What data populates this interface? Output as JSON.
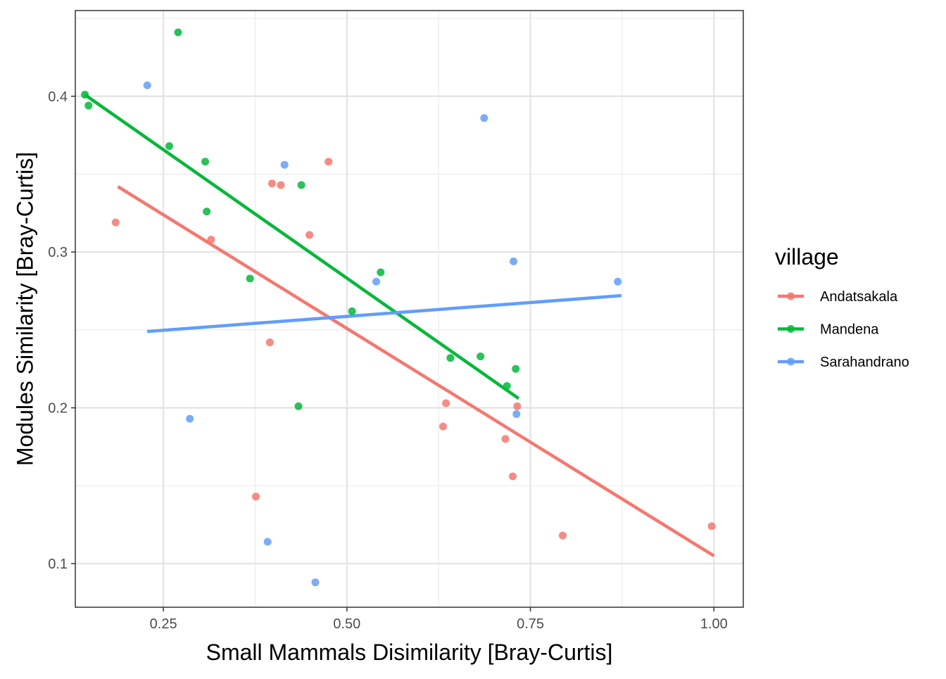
{
  "chart_data": {
    "type": "scatter",
    "title": "",
    "xlabel": "Small Mammals Disimilarity [Bray-Curtis]",
    "ylabel": "Modules Similarity [Bray-Curtis]",
    "xlim": [
      0.13,
      1.04
    ],
    "ylim": [
      0.072,
      0.455
    ],
    "xticks": [
      0.25,
      0.5,
      0.75,
      1.0
    ],
    "xtick_labels": [
      "0.25",
      "0.50",
      "0.75",
      "1.00"
    ],
    "yticks": [
      0.1,
      0.2,
      0.3,
      0.4
    ],
    "ytick_labels": [
      "0.1",
      "0.2",
      "0.3",
      "0.4"
    ],
    "grid": true,
    "legend": {
      "title": "village",
      "placement": "right"
    },
    "series": [
      {
        "name": "Andatsakala",
        "color": "#F8766D",
        "points": [
          [
            0.185,
            0.319
          ],
          [
            0.315,
            0.308
          ],
          [
            0.398,
            0.344
          ],
          [
            0.41,
            0.343
          ],
          [
            0.475,
            0.358
          ],
          [
            0.449,
            0.311
          ],
          [
            0.395,
            0.242
          ],
          [
            0.376,
            0.143
          ],
          [
            0.635,
            0.203
          ],
          [
            0.631,
            0.188
          ],
          [
            0.716,
            0.18
          ],
          [
            0.726,
            0.156
          ],
          [
            0.732,
            0.201
          ],
          [
            0.794,
            0.118
          ],
          [
            0.997,
            0.124
          ]
        ],
        "fit": [
          [
            0.188,
            0.342
          ],
          [
            1.0,
            0.105
          ]
        ]
      },
      {
        "name": "Mandena",
        "color": "#00BA38",
        "points": [
          [
            0.143,
            0.401
          ],
          [
            0.148,
            0.394
          ],
          [
            0.27,
            0.441
          ],
          [
            0.258,
            0.368
          ],
          [
            0.307,
            0.358
          ],
          [
            0.309,
            0.326
          ],
          [
            0.438,
            0.343
          ],
          [
            0.368,
            0.283
          ],
          [
            0.546,
            0.287
          ],
          [
            0.507,
            0.262
          ],
          [
            0.434,
            0.201
          ],
          [
            0.641,
            0.232
          ],
          [
            0.682,
            0.233
          ],
          [
            0.73,
            0.225
          ],
          [
            0.718,
            0.214
          ]
        ],
        "fit": [
          [
            0.143,
            0.401
          ],
          [
            0.734,
            0.206
          ]
        ]
      },
      {
        "name": "Sarahandrano",
        "color": "#619CFF",
        "points": [
          [
            0.228,
            0.407
          ],
          [
            0.415,
            0.356
          ],
          [
            0.687,
            0.386
          ],
          [
            0.727,
            0.294
          ],
          [
            0.54,
            0.281
          ],
          [
            0.869,
            0.281
          ],
          [
            0.286,
            0.193
          ],
          [
            0.731,
            0.196
          ],
          [
            0.392,
            0.114
          ],
          [
            0.457,
            0.088
          ]
        ],
        "fit": [
          [
            0.228,
            0.249
          ],
          [
            0.874,
            0.272
          ]
        ]
      }
    ]
  }
}
